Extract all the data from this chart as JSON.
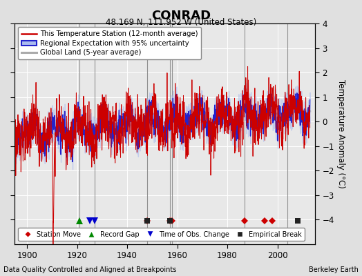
{
  "title": "CONRAD",
  "subtitle": "48.169 N, 111.952 W (United States)",
  "ylabel": "Temperature Anomaly (°C)",
  "xlabel_note": "Data Quality Controlled and Aligned at Breakpoints",
  "credit": "Berkeley Earth",
  "ylim": [
    -5,
    4
  ],
  "xlim": [
    1895,
    2015
  ],
  "xticks": [
    1900,
    1920,
    1940,
    1960,
    1980,
    2000
  ],
  "yticks": [
    -4,
    -3,
    -2,
    -1,
    0,
    1,
    2,
    3,
    4
  ],
  "bg_color": "#e0e0e0",
  "plot_bg_color": "#e8e8e8",
  "grid_color": "white",
  "vertical_lines": [
    1921,
    1927,
    1948,
    1957,
    1958,
    1987,
    2004
  ],
  "station_move_years": [
    1948,
    1957,
    1958,
    1987,
    1995,
    1998
  ],
  "record_gap_years": [
    1921
  ],
  "obs_change_years": [
    1925,
    1927
  ],
  "empirical_break_years": [
    1948,
    1957,
    2008
  ],
  "red_line_color": "#cc0000",
  "blue_line_color": "#2222cc",
  "blue_fill_color": "#aabbee",
  "gray_line_color": "#aaaaaa",
  "marker_y": -4.05,
  "station_move_color": "#cc0000",
  "record_gap_color": "#008800",
  "obs_change_color": "#0000cc",
  "empirical_break_color": "#222222"
}
